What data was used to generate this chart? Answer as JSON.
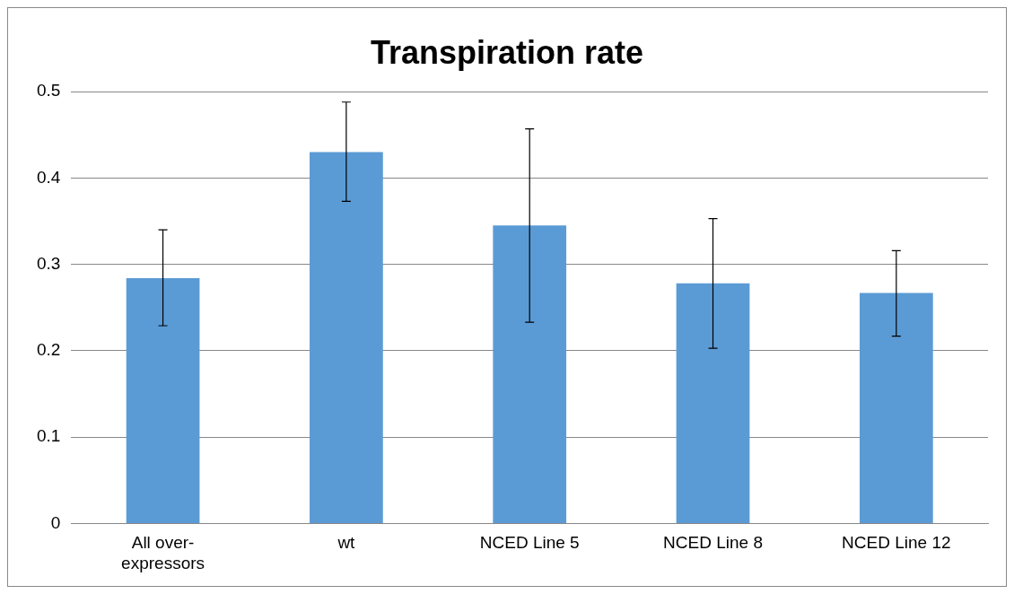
{
  "chart_data": {
    "type": "bar",
    "title": "Transpiration rate",
    "categories": [
      "All over-expressors",
      "wt",
      "NCED Line 5",
      "NCED Line 8",
      "NCED Line 12"
    ],
    "values": [
      0.284,
      0.43,
      0.345,
      0.278,
      0.267
    ],
    "errors": [
      [
        0.229,
        0.34
      ],
      [
        0.373,
        0.488
      ],
      [
        0.233,
        0.457
      ],
      [
        0.203,
        0.353
      ],
      [
        0.217,
        0.316
      ]
    ],
    "color": "#5b9bd5",
    "ylim": [
      0,
      0.5
    ],
    "yticks": [
      0,
      0.1,
      0.2,
      0.3,
      0.4,
      0.5
    ],
    "grid": "y",
    "legend": false
  }
}
